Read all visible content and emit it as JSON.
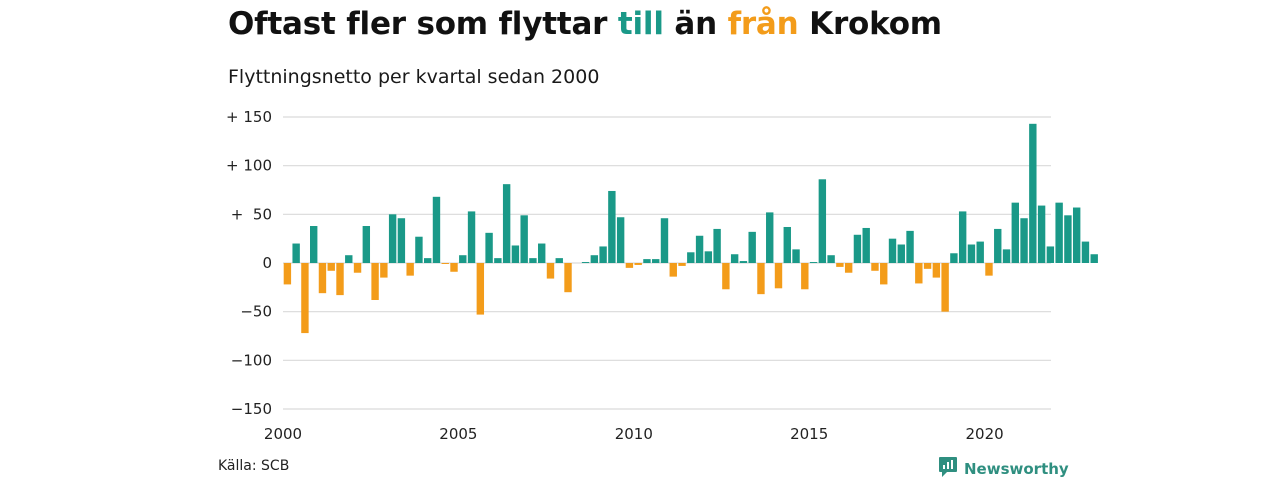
{
  "title": {
    "part1": "Oftast fler som flyttar ",
    "part2": "till",
    "part3": " än ",
    "part4": "från",
    "part5": " Krokom"
  },
  "subtitle": "Flyttningsnetto per kvartal sedan 2000",
  "source": "Källa: SCB",
  "brand": "Newsworthy",
  "colors": {
    "positive": "#1a9988",
    "negative": "#f39c1a",
    "grid": "#d9d9d9",
    "brand": "#2f8f80"
  },
  "chart_data": {
    "type": "bar",
    "title": "",
    "xlabel": "",
    "ylabel": "",
    "ylim": [
      -150,
      150
    ],
    "y_ticks": [
      {
        "value": 150,
        "label": "+ 150"
      },
      {
        "value": 100,
        "label": "+ 100"
      },
      {
        "value": 50,
        "label": "+  50"
      },
      {
        "value": 0,
        "label": "0"
      },
      {
        "value": -50,
        "label": "−50"
      },
      {
        "value": -100,
        "label": "−100"
      },
      {
        "value": -150,
        "label": "−150"
      }
    ],
    "x_ticks": [
      "2000",
      "2005",
      "2010",
      "2015",
      "2020"
    ],
    "start_year": 2000,
    "grid": true,
    "values": [
      -22,
      20,
      -72,
      38,
      -31,
      -8,
      -33,
      8,
      -10,
      38,
      -38,
      -15,
      50,
      46,
      -13,
      27,
      5,
      68,
      -1,
      -9,
      8,
      53,
      -53,
      31,
      5,
      81,
      18,
      49,
      5,
      20,
      -16,
      5,
      -30,
      0,
      1,
      8,
      17,
      74,
      47,
      -5,
      -2,
      4,
      4,
      46,
      -14,
      -3,
      11,
      28,
      12,
      35,
      -27,
      9,
      2,
      32,
      -32,
      52,
      -26,
      37,
      14,
      -27,
      1,
      86,
      8,
      -4,
      -10,
      29,
      36,
      -8,
      -22,
      25,
      19,
      33,
      -21,
      -6,
      -15,
      -50,
      10,
      53,
      19,
      22,
      -13,
      35,
      14,
      62,
      46,
      143,
      59,
      17,
      62,
      49,
      57,
      22,
      9
    ]
  }
}
